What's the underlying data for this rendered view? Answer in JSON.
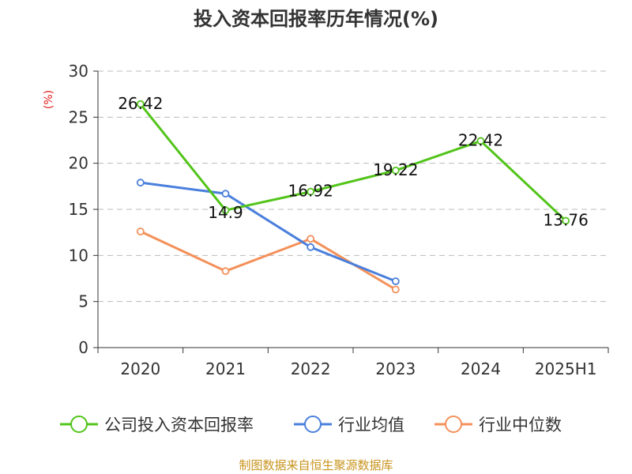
{
  "chart_data": {
    "type": "line",
    "title": "投入资本回报率历年情况(%)",
    "ylabel": "(%)",
    "categories": [
      "2020",
      "2021",
      "2022",
      "2023",
      "2024",
      "2025H1"
    ],
    "ylim": [
      0,
      30
    ],
    "yticks": [
      0,
      5,
      10,
      15,
      20,
      25,
      30
    ],
    "grid": true,
    "legend_position": "bottom",
    "series": [
      {
        "name": "公司投入资本回报率",
        "color": "#52c41a",
        "values": [
          26.42,
          14.9,
          16.92,
          19.22,
          22.42,
          13.76
        ],
        "labels": [
          "26.42",
          "14.9",
          "16.92",
          "19.22",
          "22.42",
          "13.76"
        ]
      },
      {
        "name": "行业均值",
        "color": "#4a7fdc",
        "values": [
          17.9,
          16.7,
          10.9,
          7.2,
          null,
          null
        ]
      },
      {
        "name": "行业中位数",
        "color": "#f4905a",
        "values": [
          12.6,
          8.3,
          11.8,
          6.3,
          null,
          null
        ]
      }
    ]
  },
  "source": "制图数据来自恒生聚源数据库"
}
